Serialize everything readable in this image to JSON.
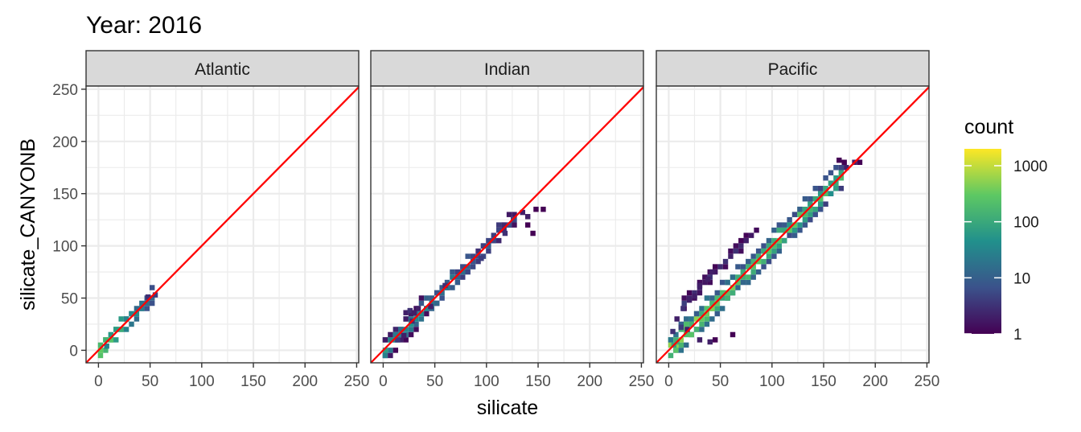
{
  "chart_data": {
    "type": "heatmap",
    "title": "Year: 2016",
    "xlabel": "silicate",
    "ylabel": "silicate_CANYONB",
    "xlim": [
      -12,
      252
    ],
    "ylim": [
      -12,
      253
    ],
    "x_ticks": [
      0,
      50,
      100,
      150,
      200,
      250
    ],
    "y_ticks": [
      0,
      50,
      100,
      150,
      200,
      250
    ],
    "grid": true,
    "reference_line": {
      "type": "identity",
      "color": "#ff0000"
    },
    "legend": {
      "title": "count",
      "position": "right",
      "scale": "log10",
      "breaks": [
        1,
        10,
        100,
        1000
      ],
      "break_labels": [
        "1",
        "10",
        "100",
        "1000"
      ],
      "range": [
        1,
        2000
      ],
      "colors": [
        "#440154",
        "#3b528b",
        "#21908c",
        "#5dc863",
        "#fde725"
      ]
    },
    "panels": [
      {
        "name": "Atlantic",
        "segments": [
          {
            "x0": 2,
            "x1": 52,
            "spread": 2.5,
            "count_start": 400,
            "count_end": 15
          }
        ],
        "points": [
          [
            55,
            53,
            4
          ],
          [
            48,
            51,
            3
          ],
          [
            8,
            4,
            30
          ]
        ]
      },
      {
        "name": "Indian",
        "segments": [
          {
            "x0": 2,
            "x1": 130,
            "spread": 4.5,
            "count_start": 60,
            "count_end": 5
          }
        ],
        "points": [
          [
            22,
            36,
            2
          ],
          [
            26,
            38,
            3
          ],
          [
            30,
            36,
            2
          ],
          [
            34,
            40,
            2
          ],
          [
            28,
            28,
            3
          ],
          [
            46,
            42,
            2
          ],
          [
            60,
            62,
            3
          ],
          [
            95,
            88,
            4
          ],
          [
            135,
            132,
            2
          ],
          [
            140,
            128,
            2
          ],
          [
            148,
            135,
            1
          ],
          [
            155,
            135,
            1
          ],
          [
            140,
            120,
            1
          ],
          [
            145,
            112,
            1
          ],
          [
            118,
            112,
            3
          ],
          [
            126,
            125,
            5
          ],
          [
            20,
            14,
            2
          ],
          [
            14,
            10,
            4
          ]
        ]
      },
      {
        "name": "Pacific",
        "segments": [
          {
            "x0": 2,
            "x1": 170,
            "spread": 3.5,
            "count_start": 500,
            "count_end": 150
          },
          {
            "x0": 15,
            "x1": 85,
            "offset": 30,
            "spread": 2.5,
            "count_start": 3,
            "count_end": 2
          }
        ],
        "points": [
          [
            180,
            180,
            2
          ],
          [
            185,
            180,
            1
          ],
          [
            170,
            180,
            1
          ],
          [
            165,
            182,
            1
          ],
          [
            172,
            175,
            2
          ],
          [
            8,
            30,
            2
          ],
          [
            14,
            40,
            3
          ],
          [
            20,
            48,
            2
          ],
          [
            25,
            52,
            2
          ],
          [
            30,
            62,
            2
          ],
          [
            38,
            68,
            2
          ],
          [
            42,
            75,
            2
          ],
          [
            5,
            5,
            80
          ],
          [
            8,
            8,
            120
          ],
          [
            30,
            10,
            2
          ],
          [
            40,
            8,
            2
          ],
          [
            45,
            10,
            1
          ],
          [
            62,
            15,
            1
          ],
          [
            4,
            18,
            3
          ],
          [
            12,
            22,
            4
          ],
          [
            18,
            20,
            2
          ]
        ]
      }
    ]
  }
}
